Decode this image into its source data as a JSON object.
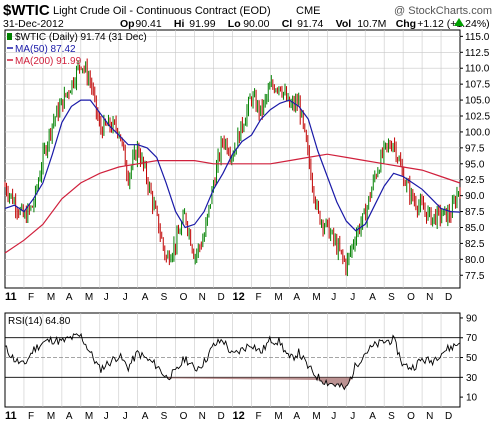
{
  "header": {
    "symbol": "$WTIC",
    "description": "Light Crude Oil - Continuous Contract (EOD)",
    "exchange": "CME",
    "watermark": "@ StockCharts.com",
    "date": "31-Dec-2012",
    "quote": [
      {
        "label": "Op",
        "value": "90.41"
      },
      {
        "label": "Hi",
        "value": "91.99"
      },
      {
        "label": "Lo",
        "value": "90.00"
      },
      {
        "label": "Cl",
        "value": "91.74"
      },
      {
        "label": "Vol",
        "value": "10.7M"
      },
      {
        "label": "Chg",
        "value": "+1.12 (+1.24%)"
      }
    ],
    "up_arrow_color": "#00a000"
  },
  "colors": {
    "up": "#008000",
    "down": "#c00000",
    "ma50": "#1a1aa8",
    "ma200": "#d0203c",
    "rsi": "#000000",
    "rsi_fill": "#b08080",
    "grid": "#c8c8c8"
  },
  "chart_data": [
    {
      "type": "line",
      "panel": "price",
      "legend": [
        {
          "text": "$WTIC (Daily) 91.74 (31 Dec)",
          "style": "bars"
        },
        {
          "text": "MA(50) 87.42",
          "color": "#1a1aa8"
        },
        {
          "text": "MA(200) 91.99",
          "color": "#d0203c"
        }
      ],
      "x_tick_labels": [
        "11",
        "F",
        "M",
        "A",
        "M",
        "J",
        "J",
        "A",
        "S",
        "O",
        "N",
        "D",
        "12",
        "F",
        "M",
        "A",
        "M",
        "J",
        "J",
        "A",
        "S",
        "O",
        "N",
        "D"
      ],
      "y_ticks": [
        77.5,
        80.0,
        82.5,
        85.0,
        87.5,
        90.0,
        92.5,
        95.0,
        97.5,
        100.0,
        102.5,
        105.0,
        107.5,
        110.0,
        112.5,
        115.0
      ],
      "ylim": [
        75.5,
        116
      ],
      "series": [
        {
          "name": "$WTIC",
          "x": [
            0,
            0.5,
            1,
            1.5,
            2,
            2.5,
            3,
            3.5,
            4,
            4.5,
            5,
            5.5,
            6,
            6.5,
            7,
            7.5,
            8,
            8.5,
            9,
            9.5,
            10,
            10.5,
            11,
            11.5,
            12,
            12.5,
            13,
            13.5,
            14,
            14.5,
            15,
            15.5,
            16,
            16.5,
            17,
            17.5,
            18,
            18.5,
            19,
            19.5,
            20,
            20.5,
            21,
            21.5,
            22,
            22.5,
            23,
            23.5,
            24
          ],
          "values": [
            91.5,
            89,
            86.5,
            88.5,
            96,
            101.5,
            104.5,
            107.5,
            111,
            108,
            100.5,
            101,
            100.5,
            93,
            97.5,
            92.5,
            86.5,
            80,
            82.5,
            87,
            80.5,
            83.5,
            92,
            99,
            96.5,
            101,
            105.5,
            103,
            107,
            107.5,
            104,
            104.5,
            96,
            87,
            85,
            82,
            79,
            84,
            87,
            93,
            97,
            98.5,
            93,
            89.5,
            88,
            86.5,
            87,
            87,
            91.7
          ]
        },
        {
          "name": "MA(50)",
          "x": [
            0,
            0.5,
            1,
            1.5,
            2,
            2.5,
            3,
            3.5,
            4,
            4.5,
            5,
            5.5,
            6,
            6.5,
            7,
            7.5,
            8,
            8.5,
            9,
            9.5,
            10,
            10.5,
            11,
            11.5,
            12,
            12.5,
            13,
            13.5,
            14,
            14.5,
            15,
            15.5,
            16,
            16.5,
            17,
            17.5,
            18,
            18.5,
            19,
            19.5,
            20,
            20.5,
            21,
            21.5,
            22,
            22.5,
            23,
            23.5,
            24
          ],
          "values": [
            88,
            88.5,
            87.5,
            89.5,
            92,
            96.5,
            101.5,
            104,
            105,
            105,
            103,
            101,
            99.5,
            98,
            98,
            97.5,
            96,
            92,
            87.5,
            85,
            85.5,
            87.5,
            91,
            93.5,
            96.5,
            98.5,
            99.5,
            102,
            103.5,
            104.5,
            105,
            104,
            102,
            97,
            93,
            89,
            86,
            84.5,
            85.5,
            88.5,
            91.5,
            93.5,
            93,
            92,
            91,
            89.5,
            88,
            87.5,
            87.42
          ]
        },
        {
          "name": "MA(200)",
          "x": [
            0,
            1,
            2,
            3,
            4,
            5,
            6,
            7,
            8,
            9,
            10,
            11,
            12,
            13,
            14,
            15,
            16,
            17,
            18,
            19,
            20,
            21,
            22,
            23,
            24
          ],
          "values": [
            81,
            83,
            85.5,
            89.5,
            92,
            93.5,
            94.5,
            95,
            95.5,
            95.5,
            95.5,
            95,
            95,
            95,
            95,
            95.5,
            96,
            96.5,
            96,
            95.5,
            95,
            94.5,
            94,
            93,
            91.99
          ]
        }
      ]
    },
    {
      "type": "line",
      "panel": "indicator",
      "legend": [
        {
          "text": "RSI(14) 64.80"
        }
      ],
      "x_tick_labels": [
        "11",
        "F",
        "M",
        "A",
        "M",
        "J",
        "J",
        "A",
        "S",
        "O",
        "N",
        "D",
        "12",
        "F",
        "M",
        "A",
        "M",
        "J",
        "J",
        "A",
        "S",
        "O",
        "N",
        "D"
      ],
      "y_ticks": [
        10,
        30,
        50,
        70,
        90
      ],
      "ylim": [
        0,
        95
      ],
      "reference_lines": [
        30,
        50,
        70
      ],
      "series": [
        {
          "name": "RSI(14)",
          "x": [
            0,
            0.5,
            1,
            1.5,
            2,
            2.5,
            3,
            3.5,
            4,
            4.5,
            5,
            5.5,
            6,
            6.5,
            7,
            7.5,
            8,
            8.5,
            9,
            9.5,
            10,
            10.5,
            11,
            11.5,
            12,
            12.5,
            13,
            13.5,
            14,
            14.5,
            15,
            15.5,
            16,
            16.5,
            17,
            17.5,
            18,
            18.5,
            19,
            19.5,
            20,
            20.5,
            21,
            21.5,
            22,
            22.5,
            23,
            23.5,
            24
          ],
          "values": [
            60,
            48,
            42,
            58,
            65,
            68,
            66,
            70,
            72,
            55,
            38,
            45,
            52,
            40,
            55,
            48,
            42,
            30,
            35,
            50,
            38,
            45,
            62,
            68,
            52,
            58,
            64,
            55,
            68,
            66,
            48,
            55,
            40,
            30,
            25,
            22,
            18,
            42,
            55,
            62,
            66,
            68,
            42,
            40,
            48,
            46,
            55,
            60,
            64.8
          ]
        }
      ]
    }
  ]
}
